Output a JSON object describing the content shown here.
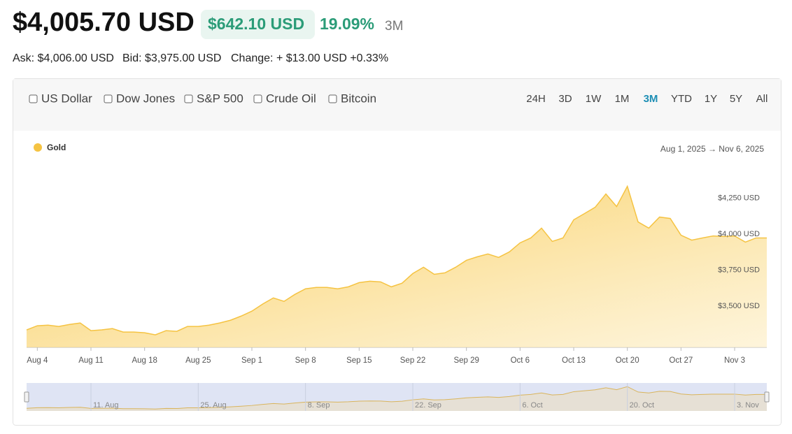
{
  "header": {
    "price": "$4,005.70 USD",
    "change": "$642.10 USD",
    "change_pct": "19.09%",
    "period": "3M"
  },
  "quote": {
    "ask": "Ask: $4,006.00 USD",
    "bid": "Bid: $3,975.00 USD",
    "change": "Change: + $13.00 USD +0.33%"
  },
  "toggles": [
    "US Dollar",
    "Dow Jones",
    "S&P 500",
    "Crude Oil",
    "Bitcoin"
  ],
  "ranges": [
    "24H",
    "3D",
    "1W",
    "1M",
    "3M",
    "YTD",
    "1Y",
    "5Y",
    "All"
  ],
  "active_range": 4,
  "chart_data": {
    "type": "area",
    "date_range": "Aug 1, 2025 → Nov 6, 2025",
    "categories": [
      null,
      "Aug 4",
      null,
      null,
      null,
      null,
      "Aug 11",
      null,
      null,
      null,
      null,
      "Aug 18",
      null,
      null,
      null,
      null,
      "Aug 25",
      null,
      null,
      null,
      null,
      "Sep 1",
      null,
      null,
      null,
      null,
      "Sep 8",
      null,
      null,
      null,
      null,
      "Sep 15",
      null,
      null,
      null,
      null,
      "Sep 22",
      null,
      null,
      null,
      null,
      "Sep 29",
      null,
      null,
      null,
      null,
      "Oct 6",
      null,
      null,
      null,
      null,
      "Oct 13",
      null,
      null,
      null,
      null,
      "Oct 20",
      null,
      null,
      null,
      null,
      "Oct 27",
      null,
      null,
      null,
      null,
      "Nov 3",
      null,
      null,
      null
    ],
    "series": [
      {
        "name": "Gold",
        "color": "#f5c342",
        "values": [
          3336,
          3365,
          3369,
          3360,
          3374,
          3384,
          3331,
          3336,
          3345,
          3321,
          3321,
          3316,
          3302,
          3331,
          3326,
          3360,
          3360,
          3369,
          3384,
          3403,
          3432,
          3466,
          3515,
          3558,
          3534,
          3582,
          3621,
          3631,
          3631,
          3621,
          3635,
          3664,
          3674,
          3669,
          3635,
          3660,
          3727,
          3771,
          3722,
          3732,
          3771,
          3819,
          3843,
          3863,
          3839,
          3877,
          3940,
          3974,
          4042,
          3950,
          3974,
          4100,
          4143,
          4187,
          4279,
          4192,
          4332,
          4085,
          4042,
          4119,
          4109,
          3993,
          3959,
          3974,
          3988,
          3984,
          3988,
          3945,
          3974,
          3974
        ]
      }
    ],
    "ylim": [
      3215,
      4500
    ],
    "yticks": [
      {
        "value": 3500,
        "label": "$3,500 USD"
      },
      {
        "value": 3750,
        "label": "$3,750 USD"
      },
      {
        "value": 4000,
        "label": "$4,000 USD"
      },
      {
        "value": 4250,
        "label": "$4,250 USD"
      }
    ],
    "grid": false,
    "navigator": {
      "labels": [
        "11. Aug",
        "25. Aug",
        "8. Sep",
        "22. Sep",
        "6. Oct",
        "20. Oct",
        "3. Nov"
      ]
    }
  }
}
